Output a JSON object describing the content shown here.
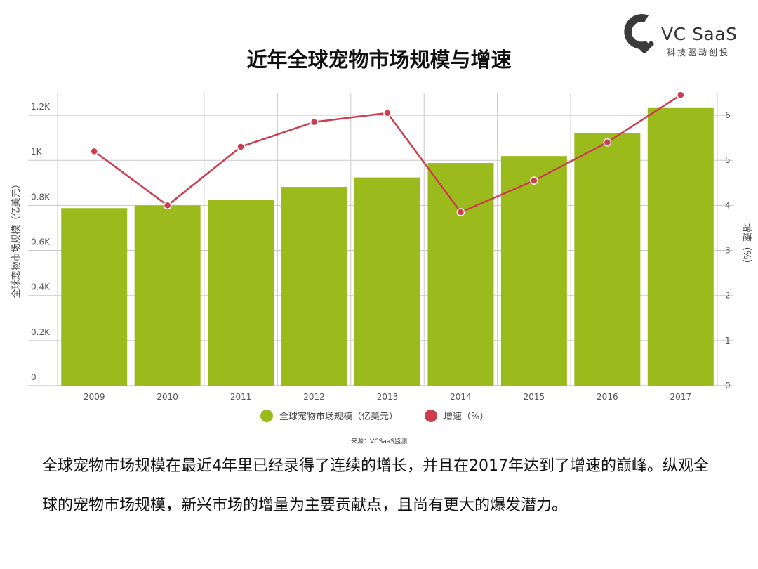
{
  "logo": {
    "text": "VC SaaS",
    "subtitle": "科技驱动创投",
    "mark_color": "#3a3a3a"
  },
  "colors": {
    "bar": "#9bbb1c",
    "line": "#cc3d50",
    "grid": "#c8c8c8",
    "axis": "#aaaaaa"
  },
  "chart_data": {
    "type": "bar",
    "title": "近年全球宠物市场规模与增速",
    "categories": [
      "2009",
      "2010",
      "2011",
      "2012",
      "2013",
      "2014",
      "2015",
      "2016",
      "2017"
    ],
    "series": [
      {
        "name": "全球宠物市场规模（亿美元）",
        "type": "bar",
        "axis": "left",
        "values": [
          788,
          800,
          824,
          882,
          924,
          988,
          1019,
          1120,
          1232
        ]
      },
      {
        "name": "增速（%）",
        "type": "line",
        "axis": "right",
        "values": [
          5.2,
          4.0,
          5.3,
          5.85,
          6.05,
          3.85,
          4.55,
          5.4,
          6.45
        ]
      }
    ],
    "ylabel": "全球宠物市场规模（亿美元）",
    "y2label": "增速（%）",
    "ylim": [
      0,
      1300
    ],
    "y2lim": [
      0,
      6.5
    ],
    "y_ticks": [
      "0",
      "0.2K",
      "0.4K",
      "0.6K",
      "0.8K",
      "1K",
      "1.2K"
    ],
    "y2_ticks": [
      "0",
      "1",
      "2",
      "3",
      "4",
      "5",
      "6"
    ],
    "legend_position": "bottom",
    "grid": true
  },
  "source_text": "来源：VCSaaS监测",
  "paragraph": "全球宠物市场规模在最近4年里已经录得了连续的增长，并且在2017年达到了增速的巅峰。纵观全球的宠物市场规模，新兴市场的增量为主要贡献点，且尚有更大的爆发潜力。"
}
